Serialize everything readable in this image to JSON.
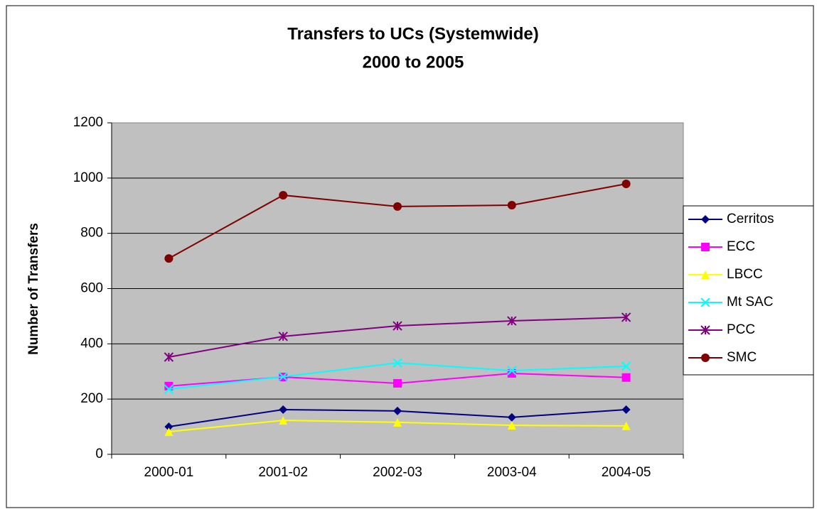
{
  "chart_data": {
    "type": "line",
    "title": "Transfers to UCs (Systemwide)",
    "subtitle": "2000 to 2005",
    "ylabel": "Number of Transfers",
    "categories": [
      "2000-01",
      "2001-02",
      "2002-03",
      "2003-04",
      "2004-05"
    ],
    "series": [
      {
        "name": "Cerritos",
        "color": "#000080",
        "marker": "diamond",
        "values": [
          100,
          162,
          157,
          134,
          162
        ]
      },
      {
        "name": "ECC",
        "color": "#ff00ff",
        "marker": "square",
        "values": [
          247,
          280,
          257,
          293,
          278
        ]
      },
      {
        "name": "LBCC",
        "color": "#ffff00",
        "marker": "triangle",
        "values": [
          82,
          123,
          116,
          105,
          103
        ]
      },
      {
        "name": "Mt SAC",
        "color": "#00ffff",
        "marker": "x",
        "values": [
          236,
          281,
          331,
          303,
          319
        ]
      },
      {
        "name": "PCC",
        "color": "#800080",
        "marker": "star",
        "values": [
          352,
          427,
          465,
          483,
          496
        ]
      },
      {
        "name": "SMC",
        "color": "#800000",
        "marker": "circle",
        "values": [
          709,
          938,
          897,
          902,
          979
        ]
      }
    ],
    "ylim": [
      0,
      1200
    ],
    "yticks": [
      0,
      200,
      400,
      600,
      800,
      1000,
      1200
    ],
    "grid": true,
    "legend": "right"
  }
}
